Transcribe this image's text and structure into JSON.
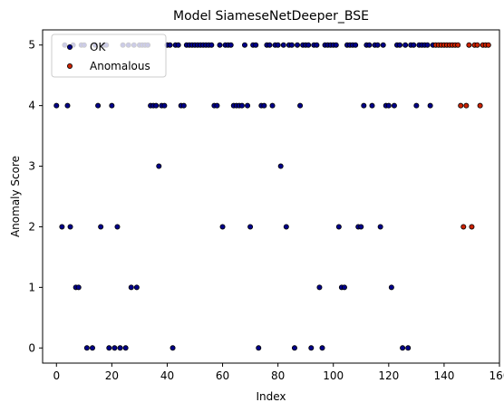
{
  "chart_data": {
    "type": "scatter",
    "title": "Model SiameseNetDeeper_BSE",
    "xlabel": "Index",
    "ylabel": "Anomaly Score",
    "xlim": [
      -5,
      160
    ],
    "ylim": [
      -0.25,
      5.25
    ],
    "xticks": [
      0,
      20,
      40,
      60,
      80,
      100,
      120,
      140,
      160
    ],
    "yticks": [
      0,
      1,
      2,
      3,
      4,
      5
    ],
    "grid": false,
    "legend": {
      "placement": "upper-left"
    },
    "colors": {
      "ok": "#00008B",
      "anomalous": "#CC2200",
      "edge": "#000000"
    },
    "series": [
      {
        "name": "OK",
        "points": [
          [
            0,
            4
          ],
          [
            2,
            2
          ],
          [
            3,
            5
          ],
          [
            4,
            4
          ],
          [
            5,
            2
          ],
          [
            6,
            5
          ],
          [
            7,
            1
          ],
          [
            8,
            1
          ],
          [
            9,
            5
          ],
          [
            10,
            5
          ],
          [
            11,
            0
          ],
          [
            13,
            0
          ],
          [
            14,
            5
          ],
          [
            15,
            4
          ],
          [
            16,
            2
          ],
          [
            17,
            5
          ],
          [
            18,
            5
          ],
          [
            19,
            0
          ],
          [
            20,
            4
          ],
          [
            21,
            0
          ],
          [
            22,
            2
          ],
          [
            23,
            0
          ],
          [
            24,
            5
          ],
          [
            25,
            0
          ],
          [
            26,
            5
          ],
          [
            27,
            1
          ],
          [
            28,
            5
          ],
          [
            29,
            1
          ],
          [
            30,
            5
          ],
          [
            31,
            5
          ],
          [
            32,
            5
          ],
          [
            33,
            5
          ],
          [
            34,
            4
          ],
          [
            35,
            4
          ],
          [
            36,
            4
          ],
          [
            37,
            3
          ],
          [
            38,
            4
          ],
          [
            39,
            4
          ],
          [
            40,
            5
          ],
          [
            41,
            5
          ],
          [
            42,
            0
          ],
          [
            43,
            5
          ],
          [
            44,
            5
          ],
          [
            45,
            4
          ],
          [
            46,
            4
          ],
          [
            47,
            5
          ],
          [
            48,
            5
          ],
          [
            49,
            5
          ],
          [
            50,
            5
          ],
          [
            51,
            5
          ],
          [
            52,
            5
          ],
          [
            53,
            5
          ],
          [
            54,
            5
          ],
          [
            55,
            5
          ],
          [
            56,
            5
          ],
          [
            57,
            4
          ],
          [
            58,
            4
          ],
          [
            59,
            5
          ],
          [
            60,
            2
          ],
          [
            61,
            5
          ],
          [
            62,
            5
          ],
          [
            63,
            5
          ],
          [
            64,
            4
          ],
          [
            65,
            4
          ],
          [
            66,
            4
          ],
          [
            67,
            4
          ],
          [
            68,
            5
          ],
          [
            69,
            4
          ],
          [
            70,
            2
          ],
          [
            71,
            5
          ],
          [
            72,
            5
          ],
          [
            73,
            0
          ],
          [
            74,
            4
          ],
          [
            75,
            4
          ],
          [
            76,
            5
          ],
          [
            77,
            5
          ],
          [
            78,
            4
          ],
          [
            79,
            5
          ],
          [
            80,
            5
          ],
          [
            81,
            3
          ],
          [
            82,
            5
          ],
          [
            83,
            2
          ],
          [
            84,
            5
          ],
          [
            85,
            5
          ],
          [
            86,
            0
          ],
          [
            87,
            5
          ],
          [
            88,
            4
          ],
          [
            89,
            5
          ],
          [
            90,
            5
          ],
          [
            91,
            5
          ],
          [
            92,
            0
          ],
          [
            93,
            5
          ],
          [
            94,
            5
          ],
          [
            95,
            1
          ],
          [
            96,
            0
          ],
          [
            97,
            5
          ],
          [
            98,
            5
          ],
          [
            99,
            5
          ],
          [
            100,
            5
          ],
          [
            101,
            5
          ],
          [
            102,
            2
          ],
          [
            103,
            1
          ],
          [
            104,
            1
          ],
          [
            105,
            5
          ],
          [
            106,
            5
          ],
          [
            107,
            5
          ],
          [
            108,
            5
          ],
          [
            109,
            2
          ],
          [
            110,
            2
          ],
          [
            111,
            4
          ],
          [
            112,
            5
          ],
          [
            113,
            5
          ],
          [
            114,
            4
          ],
          [
            115,
            5
          ],
          [
            116,
            5
          ],
          [
            117,
            2
          ],
          [
            118,
            5
          ],
          [
            119,
            4
          ],
          [
            120,
            4
          ],
          [
            121,
            1
          ],
          [
            122,
            4
          ],
          [
            123,
            5
          ],
          [
            124,
            5
          ],
          [
            125,
            0
          ],
          [
            126,
            5
          ],
          [
            127,
            0
          ],
          [
            128,
            5
          ],
          [
            129,
            5
          ],
          [
            130,
            4
          ],
          [
            131,
            5
          ],
          [
            132,
            5
          ],
          [
            133,
            5
          ],
          [
            134,
            5
          ],
          [
            135,
            4
          ],
          [
            136,
            5
          ]
        ]
      },
      {
        "name": "Anomalous",
        "points": [
          [
            137,
            5
          ],
          [
            138,
            5
          ],
          [
            139,
            5
          ],
          [
            140,
            5
          ],
          [
            141,
            5
          ],
          [
            142,
            5
          ],
          [
            143,
            5
          ],
          [
            144,
            5
          ],
          [
            145,
            5
          ],
          [
            146,
            4
          ],
          [
            147,
            2
          ],
          [
            148,
            4
          ],
          [
            149,
            5
          ],
          [
            150,
            2
          ],
          [
            151,
            5
          ],
          [
            152,
            5
          ],
          [
            153,
            4
          ],
          [
            154,
            5
          ],
          [
            155,
            5
          ],
          [
            156,
            5
          ]
        ]
      }
    ]
  }
}
